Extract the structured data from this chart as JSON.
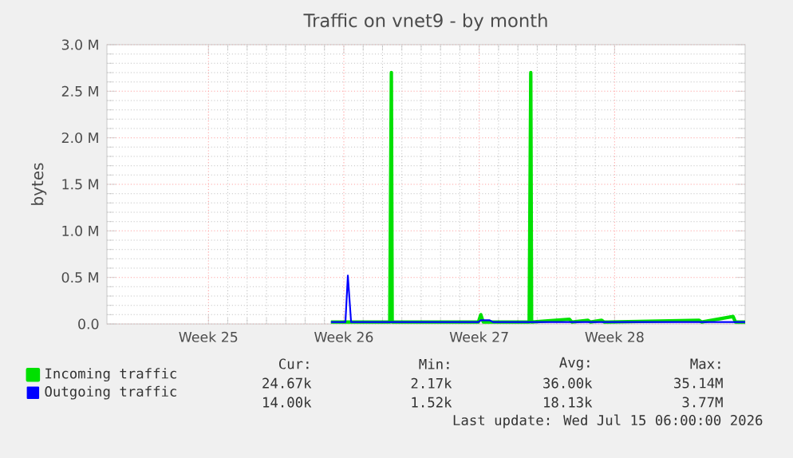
{
  "chart_data": {
    "type": "line",
    "title": "Traffic on vnet9 - by month",
    "ylabel": "bytes",
    "xlim": [
      "2026-06-12T06:00",
      "2026-07-15T06:00"
    ],
    "xticks": [
      {
        "value": "2026-06-17T12:00",
        "label": "Week 25"
      },
      {
        "value": "2026-06-24T12:00",
        "label": "Week 26"
      },
      {
        "value": "2026-07-01T12:00",
        "label": "Week 27"
      },
      {
        "value": "2026-07-08T12:00",
        "label": "Week 28"
      }
    ],
    "ylim": [
      0,
      3000000
    ],
    "yticks": [
      {
        "value": 0,
        "label": "0.0"
      },
      {
        "value": 500000,
        "label": "0.5 M"
      },
      {
        "value": 1000000,
        "label": "1.0 M"
      },
      {
        "value": 1500000,
        "label": "1.5 M"
      },
      {
        "value": 2000000,
        "label": "2.0 M"
      },
      {
        "value": 2500000,
        "label": "2.5 M"
      },
      {
        "value": 3000000,
        "label": "3.0 M"
      }
    ],
    "grid": true,
    "legend": "bottom",
    "marker": "none",
    "line_style": "solid",
    "series": [
      {
        "name": "Incoming traffic",
        "color": "#00e000",
        "x": [
          "2026-06-23T20:00",
          "2026-06-26T21:00",
          "2026-06-26T23:00",
          "2026-06-27T00:00",
          "2026-07-01T11:00",
          "2026-07-01T14:00",
          "2026-07-01T17:00",
          "2026-07-04T02:00",
          "2026-07-04T04:00",
          "2026-07-04T05:00",
          "2026-07-06T04:00",
          "2026-07-06T07:00",
          "2026-07-07T03:00",
          "2026-07-07T06:00",
          "2026-07-07T20:00",
          "2026-07-07T23:00",
          "2026-07-12T21:00",
          "2026-07-13T00:00",
          "2026-07-14T15:00",
          "2026-07-14T18:00",
          "2026-07-15T06:00"
        ],
        "values": [
          20000,
          20000,
          2700000,
          20000,
          20000,
          100000,
          20000,
          20000,
          2700000,
          20000,
          50000,
          20000,
          40000,
          20000,
          40000,
          20000,
          40000,
          20000,
          80000,
          20000,
          20000
        ]
      },
      {
        "name": "Outgoing traffic",
        "color": "#0000ff",
        "x": [
          "2026-06-23T20:00",
          "2026-06-24T14:00",
          "2026-06-24T17:00",
          "2026-06-24T21:00",
          "2026-07-01T11:00",
          "2026-07-01T14:00",
          "2026-07-02T01:00",
          "2026-07-02T05:00",
          "2026-07-15T06:00"
        ],
        "values": [
          20000,
          20000,
          520000,
          20000,
          20000,
          40000,
          40000,
          20000,
          20000
        ]
      }
    ],
    "annotations": [
      "Cur:",
      "Min:",
      "Avg:",
      "Max:",
      "24.67k",
      "2.17k",
      "36.00k",
      "35.14M",
      "14.00k",
      "1.52k",
      "18.13k",
      "3.77M",
      "Last update: Wed Jul 15 06:00:00 2026"
    ]
  }
}
